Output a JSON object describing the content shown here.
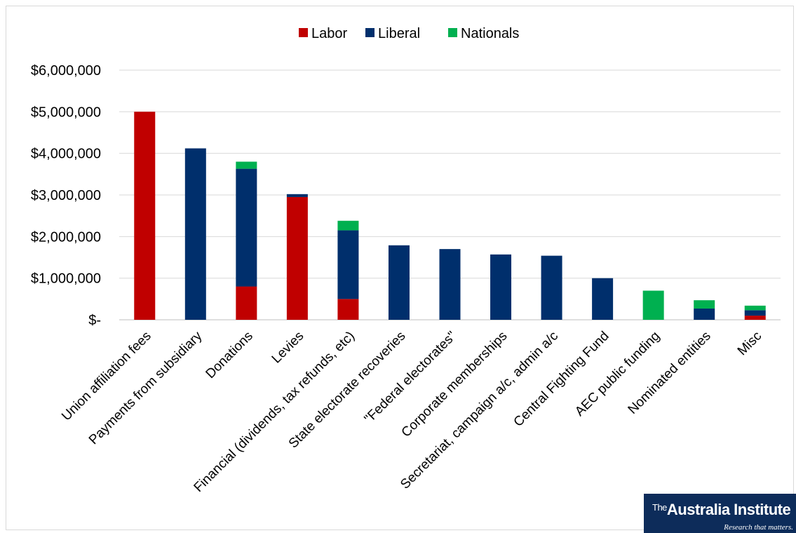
{
  "chart_data": {
    "type": "bar",
    "stacked": true,
    "categories": [
      "Union affiliation fees",
      "Payments from subsidiary",
      "Donations",
      "Levies",
      "Financial (dividends, tax refunds, etc)",
      "State electorate recoveries",
      "\"Federal electorates\"",
      "Corporate memberships",
      "Secretariat, campaign a/c, admin a/c",
      "Central Fighting Fund",
      "AEC public funding",
      "Nominated entities",
      "Misc"
    ],
    "series": [
      {
        "name": "Labor",
        "color": "#c00000",
        "values": [
          5000000,
          0,
          800000,
          2950000,
          500000,
          0,
          0,
          0,
          0,
          0,
          0,
          0,
          100000
        ]
      },
      {
        "name": "Liberal",
        "color": "#002f6c",
        "values": [
          0,
          4120000,
          2830000,
          70000,
          1650000,
          1790000,
          1700000,
          1570000,
          1540000,
          1000000,
          0,
          270000,
          130000
        ]
      },
      {
        "name": "Nationals",
        "color": "#00b050",
        "values": [
          0,
          0,
          170000,
          0,
          230000,
          0,
          0,
          0,
          0,
          0,
          700000,
          200000,
          110000
        ]
      }
    ],
    "y_ticks": [
      "$-",
      "$1,000,000",
      "$2,000,000",
      "$3,000,000",
      "$4,000,000",
      "$5,000,000",
      "$6,000,000"
    ],
    "ylim": [
      0,
      6000000
    ],
    "grid": true,
    "legend_position": "top"
  },
  "logo": {
    "the": "The",
    "name": "Australia Institute",
    "tagline": "Research that matters."
  }
}
